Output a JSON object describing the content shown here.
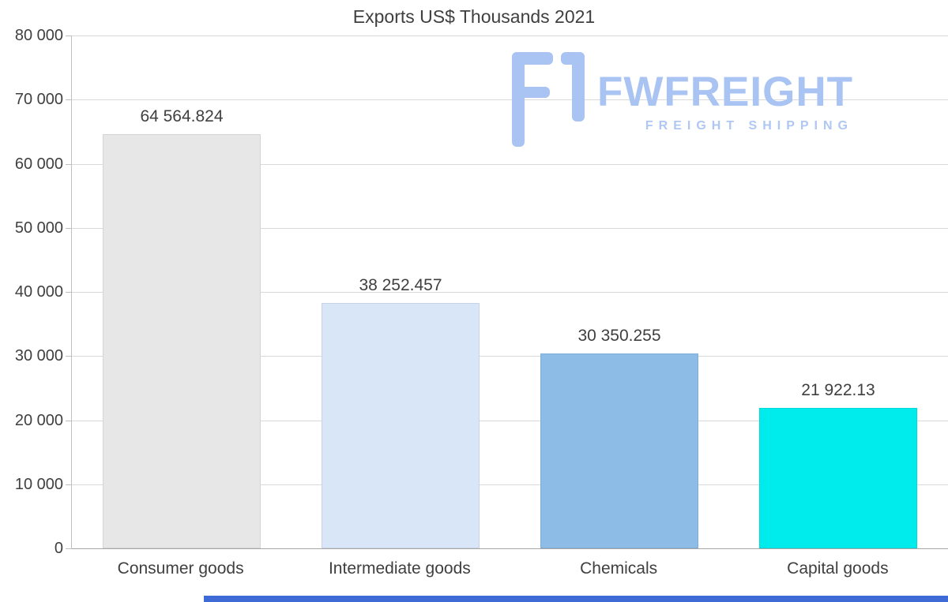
{
  "chart_data": {
    "type": "bar",
    "title": "Exports US$ Thousands 2021",
    "categories": [
      "Consumer goods",
      "Intermediate goods",
      "Chemicals",
      "Capital goods"
    ],
    "values": [
      64564.824,
      38252.457,
      30350.255,
      21922.13
    ],
    "value_labels": [
      "64 564.824",
      "38 252.457",
      "30 350.255",
      "21 922.13"
    ],
    "bar_colors": [
      "#e7e7e7",
      "#d9e6f8",
      "#8dbde6",
      "#00ecec"
    ],
    "xlabel": "",
    "ylabel": "",
    "ylim": [
      0,
      80000
    ],
    "ytick_interval": 10000,
    "ytick_labels": [
      "80 000",
      "70 000",
      "60 000",
      "50 000",
      "40 000",
      "30 000",
      "20 000",
      "10 000",
      "0"
    ],
    "grid": true,
    "legend": false
  },
  "logo": {
    "name": "FWFREIGHT",
    "tagline": "FREIGHT SHIPPING",
    "color": "#a9c3f2",
    "icon": "fwfreight-mark-icon"
  },
  "footer": {
    "color": "#3e6bd6"
  }
}
